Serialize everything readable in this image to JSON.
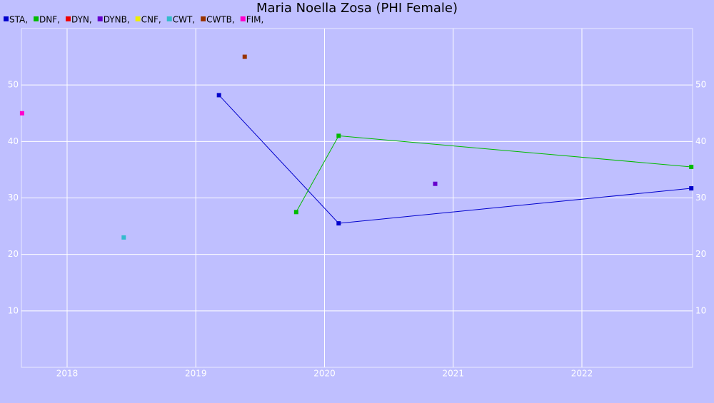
{
  "chart_data": {
    "type": "line",
    "title": "Maria Noella Zosa (PHI Female)",
    "series": [
      {
        "name": "STA,",
        "color": "#0000cc",
        "x": [
          2019.18,
          2020.11,
          2022.85
        ],
        "values": [
          48.2,
          25.5,
          31.7
        ]
      },
      {
        "name": "DNF,",
        "color": "#00bb00",
        "x": [
          2019.78,
          2020.11,
          2022.85
        ],
        "values": [
          27.5,
          41,
          35.5
        ]
      },
      {
        "name": "DYN,",
        "color": "#ee0000",
        "x": [],
        "values": []
      },
      {
        "name": "DYNB,",
        "color": "#6600cc",
        "x": [
          2020.86
        ],
        "values": [
          32.5
        ]
      },
      {
        "name": "CNF,",
        "color": "#eeee00",
        "x": [],
        "values": []
      },
      {
        "name": "CWT,",
        "color": "#33bbcc",
        "x": [
          2018.44
        ],
        "values": [
          23
        ]
      },
      {
        "name": "CWTB,",
        "color": "#993300",
        "x": [
          2019.38
        ],
        "values": [
          55
        ]
      },
      {
        "name": "FIM,",
        "color": "#ff00cc",
        "x": [
          2017.65
        ],
        "values": [
          45
        ]
      }
    ],
    "xlim": [
      2017.645,
      2022.86
    ],
    "xticks": [
      2018,
      2019,
      2020,
      2021,
      2022
    ],
    "ylim": [
      0,
      60
    ],
    "yticks": [
      10,
      20,
      30,
      40,
      50
    ],
    "grid": true
  }
}
